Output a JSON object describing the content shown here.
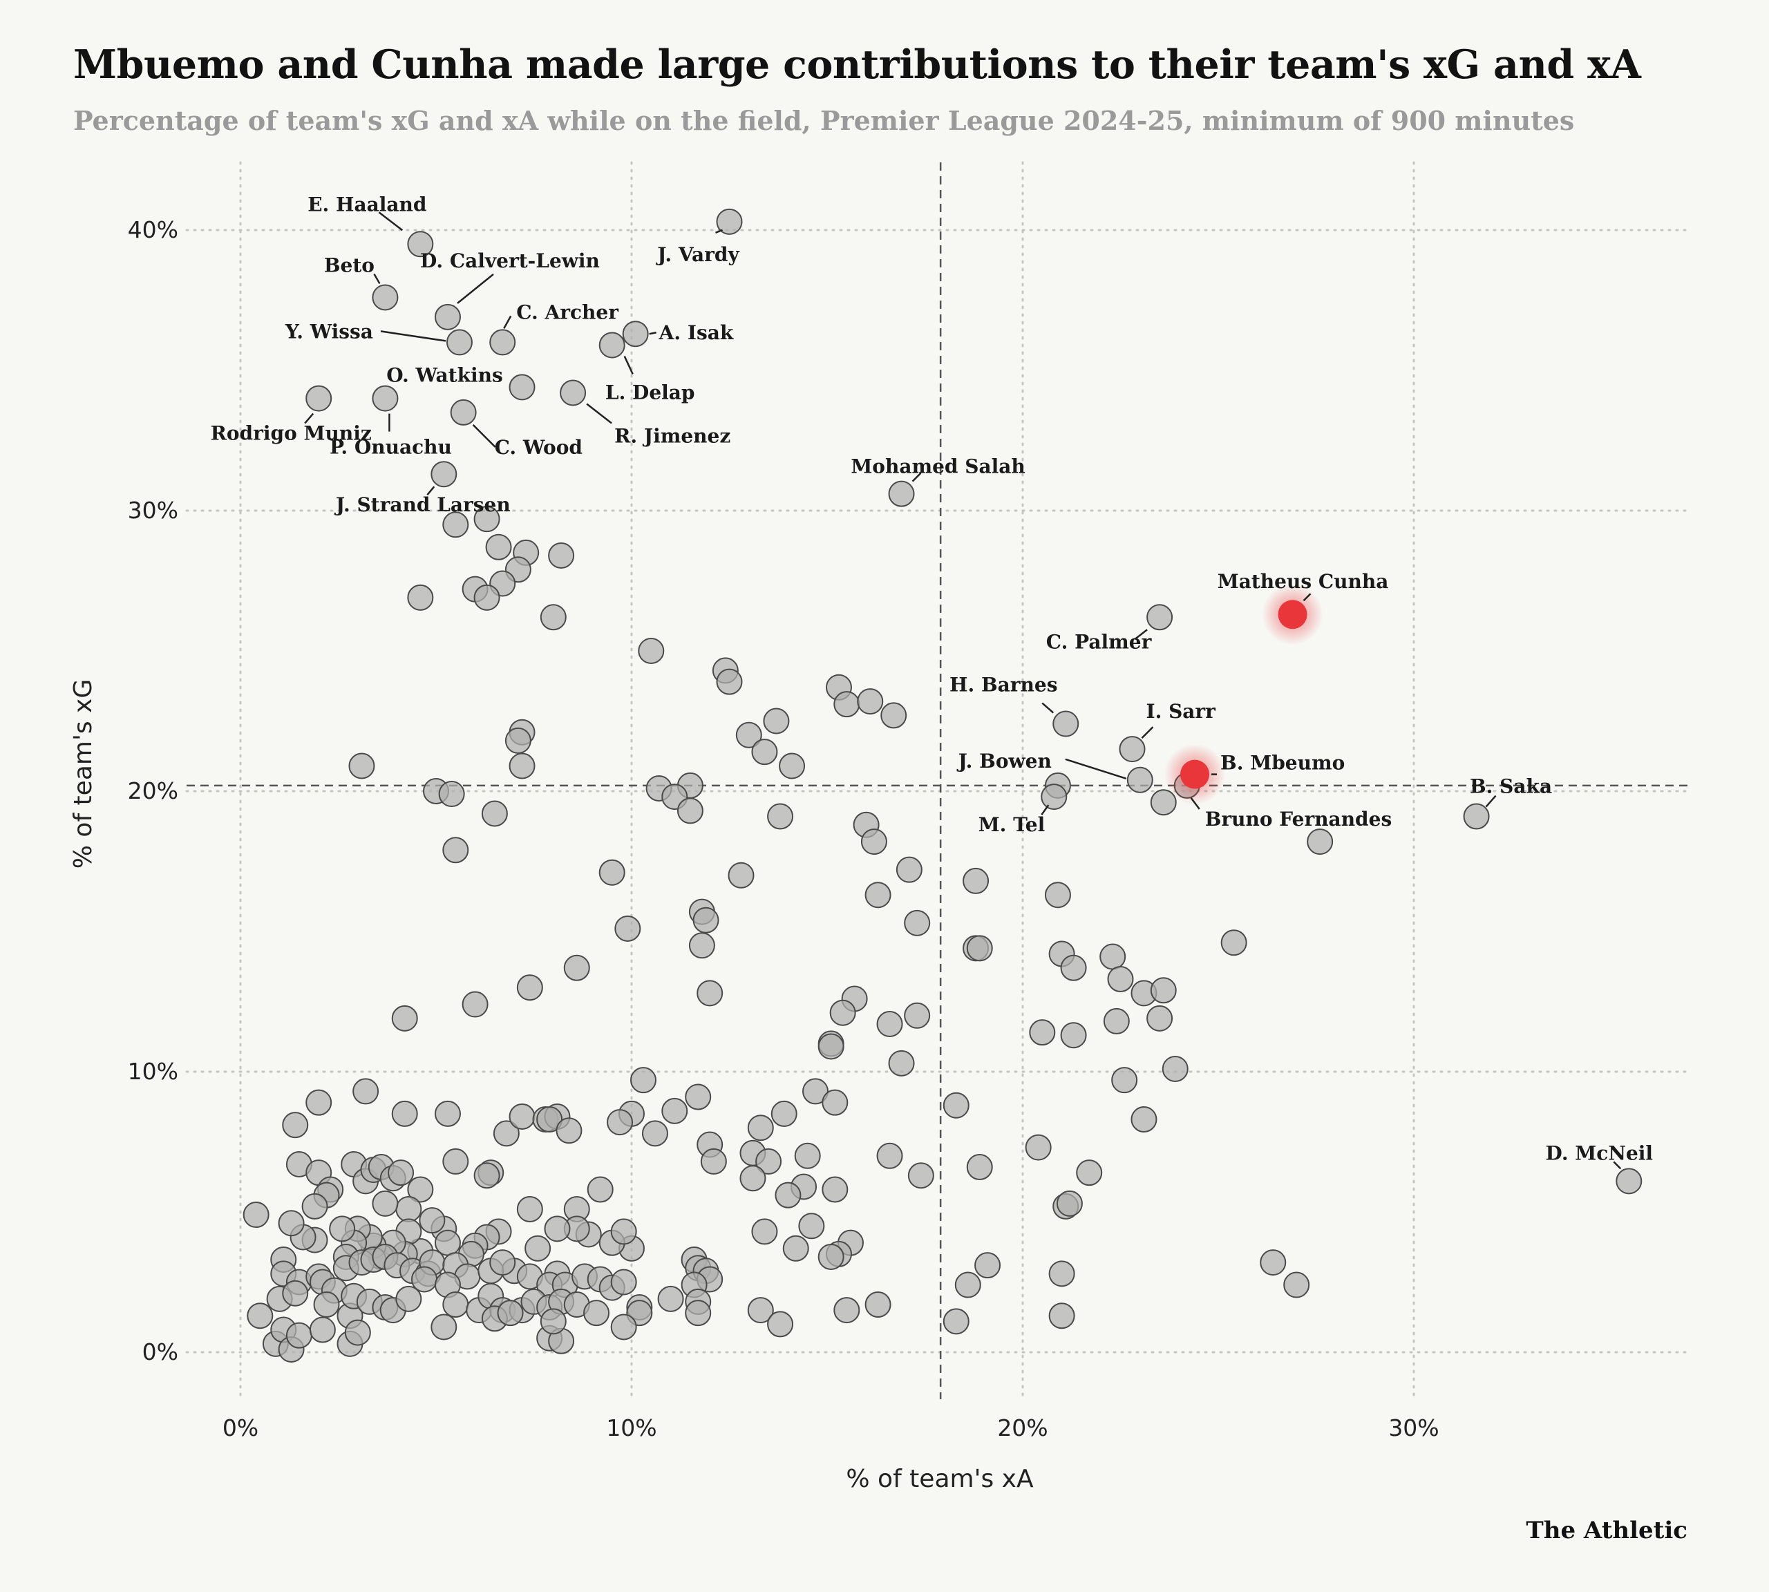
{
  "title": "Mbuemo and Cunha made large contributions to their team's xG and xA",
  "subtitle": "Percentage of team's xG and xA while on the field, Premier League 2024-25, minimum of 900 minutes",
  "source": "The Athletic",
  "colors": {
    "point_fill": "#b0b0ae",
    "point_stroke": "#4a4a4a",
    "highlight": "#e8363a",
    "background": "#f7f7f3",
    "grid": "#c4c4c0"
  },
  "chart_data": {
    "type": "scatter",
    "xlabel": "% of team's xA",
    "ylabel": "% of team's xG",
    "xlim": [
      -1.5,
      37
    ],
    "ylim": [
      -2,
      42
    ],
    "xticks": [
      0,
      10,
      20,
      30
    ],
    "yticks": [
      0,
      10,
      20,
      30,
      40
    ],
    "xtick_labels": [
      "0%",
      "10%",
      "20%",
      "30%"
    ],
    "ytick_labels": [
      "0%",
      "10%",
      "20%",
      "30%",
      "40%"
    ],
    "grid": true,
    "reference_lines": {
      "x": 17.9,
      "y": 20.2
    },
    "labeled_points": [
      {
        "name": "E. Haaland",
        "x": 4.6,
        "y": 39.5
      },
      {
        "name": "D. Calvert-Lewin",
        "x": 5.3,
        "y": 36.9
      },
      {
        "name": "Beto",
        "x": 3.7,
        "y": 37.6
      },
      {
        "name": "Y. Wissa",
        "x": 5.6,
        "y": 36.0
      },
      {
        "name": "C. Archer",
        "x": 6.7,
        "y": 36.0
      },
      {
        "name": "J. Vardy",
        "x": 12.5,
        "y": 40.3
      },
      {
        "name": "A. Isak",
        "x": 10.1,
        "y": 36.3
      },
      {
        "name": "L. Delap",
        "x": 9.5,
        "y": 35.9
      },
      {
        "name": "O. Watkins",
        "x": 7.2,
        "y": 34.4
      },
      {
        "name": "R. Jimenez",
        "x": 8.5,
        "y": 34.2
      },
      {
        "name": "Rodrigo Muniz",
        "x": 2.0,
        "y": 34.0
      },
      {
        "name": "P. Onuachu",
        "x": 3.7,
        "y": 34.0
      },
      {
        "name": "C. Wood",
        "x": 5.7,
        "y": 33.5
      },
      {
        "name": "J. Strand Larsen",
        "x": 5.2,
        "y": 31.3
      },
      {
        "name": "Mohamed Salah",
        "x": 16.9,
        "y": 30.6
      },
      {
        "name": "C. Palmer",
        "x": 23.5,
        "y": 26.2
      },
      {
        "name": "Matheus Cunha",
        "x": 26.9,
        "y": 26.3,
        "highlight": true
      },
      {
        "name": "H. Barnes",
        "x": 21.1,
        "y": 22.4
      },
      {
        "name": "I. Sarr",
        "x": 22.8,
        "y": 21.5
      },
      {
        "name": "J. Bowen",
        "x": 23.0,
        "y": 20.4
      },
      {
        "name": "B. Mbeumo",
        "x": 24.4,
        "y": 20.6,
        "highlight": true
      },
      {
        "name": "Bruno Fernandes",
        "x": 24.2,
        "y": 20.2
      },
      {
        "name": "M. Tel",
        "x": 20.8,
        "y": 19.8
      },
      {
        "name": "B. Saka",
        "x": 31.6,
        "y": 19.1
      },
      {
        "name": "D. McNeil",
        "x": 35.5,
        "y": 6.1
      }
    ],
    "points": [
      [
        20.9,
        20.2
      ],
      [
        23.6,
        19.6
      ],
      [
        27.6,
        18.2
      ],
      [
        5.5,
        29.5
      ],
      [
        6.3,
        29.7
      ],
      [
        6.6,
        28.7
      ],
      [
        7.3,
        28.5
      ],
      [
        8.2,
        28.4
      ],
      [
        7.1,
        27.9
      ],
      [
        6.7,
        27.4
      ],
      [
        6.0,
        27.2
      ],
      [
        6.3,
        26.9
      ],
      [
        4.6,
        26.9
      ],
      [
        8.0,
        26.2
      ],
      [
        10.5,
        25.0
      ],
      [
        12.4,
        24.3
      ],
      [
        12.5,
        23.9
      ],
      [
        15.3,
        23.7
      ],
      [
        15.5,
        23.1
      ],
      [
        16.1,
        23.2
      ],
      [
        16.7,
        22.7
      ],
      [
        13.7,
        22.5
      ],
      [
        13.0,
        22.0
      ],
      [
        13.4,
        21.4
      ],
      [
        14.1,
        20.9
      ],
      [
        7.2,
        22.1
      ],
      [
        7.1,
        21.8
      ],
      [
        7.2,
        20.9
      ],
      [
        3.1,
        20.9
      ],
      [
        5.0,
        20.0
      ],
      [
        5.4,
        19.9
      ],
      [
        6.5,
        19.2
      ],
      [
        5.5,
        17.9
      ],
      [
        10.7,
        20.1
      ],
      [
        11.5,
        20.2
      ],
      [
        11.1,
        19.8
      ],
      [
        11.5,
        19.3
      ],
      [
        13.8,
        19.1
      ],
      [
        16.0,
        18.8
      ],
      [
        16.2,
        18.2
      ],
      [
        17.1,
        17.2
      ],
      [
        18.8,
        16.8
      ],
      [
        9.5,
        17.1
      ],
      [
        12.8,
        17.0
      ],
      [
        11.8,
        15.7
      ],
      [
        11.9,
        15.4
      ],
      [
        9.9,
        15.1
      ],
      [
        11.8,
        14.5
      ],
      [
        16.3,
        16.3
      ],
      [
        17.3,
        15.3
      ],
      [
        18.8,
        14.4
      ],
      [
        18.9,
        14.4
      ],
      [
        20.9,
        16.3
      ],
      [
        21.0,
        14.2
      ],
      [
        21.3,
        13.7
      ],
      [
        22.3,
        14.1
      ],
      [
        25.4,
        14.6
      ],
      [
        22.5,
        13.3
      ],
      [
        23.1,
        12.8
      ],
      [
        23.6,
        12.9
      ],
      [
        23.5,
        11.9
      ],
      [
        22.4,
        11.8
      ],
      [
        20.5,
        11.4
      ],
      [
        21.3,
        11.3
      ],
      [
        15.7,
        12.6
      ],
      [
        15.4,
        12.1
      ],
      [
        17.3,
        12.0
      ],
      [
        16.6,
        11.7
      ],
      [
        12.0,
        12.8
      ],
      [
        8.6,
        13.7
      ],
      [
        7.4,
        13.0
      ],
      [
        6.0,
        12.4
      ],
      [
        4.2,
        11.9
      ],
      [
        23.9,
        10.1
      ],
      [
        22.6,
        9.7
      ],
      [
        23.1,
        8.3
      ],
      [
        18.3,
        8.8
      ],
      [
        16.9,
        10.3
      ],
      [
        15.1,
        11.0
      ],
      [
        15.1,
        10.9
      ],
      [
        14.7,
        9.3
      ],
      [
        15.2,
        8.9
      ],
      [
        10.3,
        9.7
      ],
      [
        11.7,
        9.1
      ],
      [
        11.1,
        8.6
      ],
      [
        10.6,
        7.8
      ],
      [
        10.0,
        8.5
      ],
      [
        9.7,
        8.2
      ],
      [
        13.9,
        8.5
      ],
      [
        13.3,
        8.0
      ],
      [
        12.0,
        7.4
      ],
      [
        12.1,
        6.8
      ],
      [
        13.1,
        7.1
      ],
      [
        13.5,
        6.8
      ],
      [
        13.1,
        6.2
      ],
      [
        14.5,
        7.0
      ],
      [
        14.4,
        5.9
      ],
      [
        14.0,
        5.6
      ],
      [
        15.2,
        5.8
      ],
      [
        16.6,
        7.0
      ],
      [
        17.4,
        6.3
      ],
      [
        20.4,
        7.3
      ],
      [
        21.7,
        6.4
      ],
      [
        21.1,
        5.2
      ],
      [
        21.2,
        5.3
      ],
      [
        18.9,
        6.6
      ],
      [
        3.2,
        9.3
      ],
      [
        2.0,
        8.9
      ],
      [
        1.4,
        8.1
      ],
      [
        4.2,
        8.5
      ],
      [
        5.3,
        8.5
      ],
      [
        6.8,
        7.8
      ],
      [
        7.2,
        8.4
      ],
      [
        7.8,
        8.3
      ],
      [
        8.1,
        8.4
      ],
      [
        7.9,
        8.3
      ],
      [
        8.4,
        7.9
      ],
      [
        6.4,
        6.4
      ],
      [
        6.3,
        6.3
      ],
      [
        5.5,
        6.8
      ],
      [
        1.5,
        6.7
      ],
      [
        2.0,
        6.4
      ],
      [
        2.3,
        5.8
      ],
      [
        2.9,
        6.7
      ],
      [
        3.2,
        6.1
      ],
      [
        3.4,
        6.5
      ],
      [
        3.6,
        6.6
      ],
      [
        3.9,
        6.2
      ],
      [
        4.1,
        6.4
      ],
      [
        4.6,
        5.8
      ],
      [
        4.3,
        5.1
      ],
      [
        3.7,
        5.3
      ],
      [
        2.2,
        5.6
      ],
      [
        1.9,
        5.2
      ],
      [
        0.4,
        4.9
      ],
      [
        9.2,
        5.8
      ],
      [
        8.6,
        5.1
      ],
      [
        7.4,
        5.1
      ],
      [
        13.4,
        4.3
      ],
      [
        14.6,
        4.5
      ],
      [
        14.2,
        3.7
      ],
      [
        15.6,
        3.9
      ],
      [
        15.3,
        3.5
      ],
      [
        15.1,
        3.4
      ],
      [
        26.4,
        3.2
      ],
      [
        27.0,
        2.4
      ],
      [
        19.1,
        3.1
      ],
      [
        18.6,
        2.4
      ],
      [
        21.0,
        2.8
      ],
      [
        21.0,
        1.3
      ],
      [
        18.3,
        1.1
      ],
      [
        11.6,
        3.3
      ],
      [
        11.7,
        3.0
      ],
      [
        11.9,
        2.9
      ],
      [
        12.0,
        2.6
      ],
      [
        11.6,
        2.4
      ],
      [
        11.7,
        1.8
      ],
      [
        11.7,
        1.4
      ],
      [
        11.0,
        1.9
      ],
      [
        10.2,
        1.6
      ],
      [
        10.2,
        1.4
      ],
      [
        9.8,
        0.9
      ],
      [
        13.3,
        1.5
      ],
      [
        13.8,
        1.0
      ],
      [
        15.5,
        1.5
      ],
      [
        16.3,
        1.7
      ],
      [
        10.0,
        3.7
      ],
      [
        9.5,
        3.9
      ],
      [
        9.8,
        4.3
      ],
      [
        8.9,
        4.2
      ],
      [
        8.6,
        4.4
      ],
      [
        8.1,
        4.4
      ],
      [
        8.1,
        2.8
      ],
      [
        7.6,
        3.7
      ],
      [
        7.0,
        2.9
      ],
      [
        6.6,
        4.3
      ],
      [
        6.3,
        4.1
      ],
      [
        6.0,
        3.8
      ],
      [
        5.9,
        3.5
      ],
      [
        5.2,
        4.4
      ],
      [
        5.3,
        3.9
      ],
      [
        4.9,
        4.7
      ],
      [
        4.6,
        3.6
      ],
      [
        4.3,
        4.3
      ],
      [
        4.2,
        3.5
      ],
      [
        3.9,
        3.9
      ],
      [
        3.6,
        3.4
      ],
      [
        3.4,
        3.8
      ],
      [
        3.3,
        4.1
      ],
      [
        3.0,
        4.4
      ],
      [
        2.9,
        3.9
      ],
      [
        2.6,
        4.4
      ],
      [
        1.9,
        4.0
      ],
      [
        1.6,
        4.1
      ],
      [
        1.3,
        4.6
      ],
      [
        1.1,
        3.3
      ],
      [
        1.1,
        2.8
      ],
      [
        1.5,
        2.5
      ],
      [
        2.0,
        2.7
      ],
      [
        2.1,
        2.5
      ],
      [
        2.4,
        2.2
      ],
      [
        2.7,
        3.4
      ],
      [
        2.7,
        3.0
      ],
      [
        3.1,
        3.2
      ],
      [
        3.4,
        3.3
      ],
      [
        3.7,
        3.4
      ],
      [
        4.0,
        3.1
      ],
      [
        4.4,
        2.9
      ],
      [
        4.8,
        2.8
      ],
      [
        4.9,
        3.2
      ],
      [
        5.5,
        3.1
      ],
      [
        5.8,
        2.7
      ],
      [
        6.4,
        2.9
      ],
      [
        6.7,
        3.2
      ],
      [
        7.4,
        2.7
      ],
      [
        7.9,
        2.4
      ],
      [
        8.3,
        2.4
      ],
      [
        8.8,
        2.7
      ],
      [
        9.2,
        2.6
      ],
      [
        9.5,
        2.3
      ],
      [
        9.8,
        2.5
      ],
      [
        1.0,
        1.9
      ],
      [
        1.4,
        2.1
      ],
      [
        2.2,
        1.7
      ],
      [
        2.8,
        1.3
      ],
      [
        2.9,
        2.0
      ],
      [
        3.3,
        1.8
      ],
      [
        3.7,
        1.6
      ],
      [
        3.9,
        1.5
      ],
      [
        4.3,
        1.9
      ],
      [
        4.7,
        2.6
      ],
      [
        5.3,
        2.4
      ],
      [
        5.5,
        1.7
      ],
      [
        6.1,
        1.5
      ],
      [
        6.4,
        2.0
      ],
      [
        6.7,
        1.5
      ],
      [
        7.2,
        1.5
      ],
      [
        7.5,
        1.8
      ],
      [
        7.9,
        1.6
      ],
      [
        8.2,
        1.8
      ],
      [
        8.6,
        1.7
      ],
      [
        9.1,
        1.4
      ],
      [
        0.5,
        1.3
      ],
      [
        0.9,
        0.3
      ],
      [
        1.1,
        0.8
      ],
      [
        1.3,
        0.1
      ],
      [
        1.5,
        0.6
      ],
      [
        2.1,
        0.8
      ],
      [
        2.8,
        0.3
      ],
      [
        3.0,
        0.7
      ],
      [
        5.2,
        0.9
      ],
      [
        6.5,
        1.2
      ],
      [
        6.9,
        1.4
      ],
      [
        7.9,
        0.5
      ],
      [
        8.2,
        0.4
      ],
      [
        8.0,
        1.1
      ]
    ]
  }
}
